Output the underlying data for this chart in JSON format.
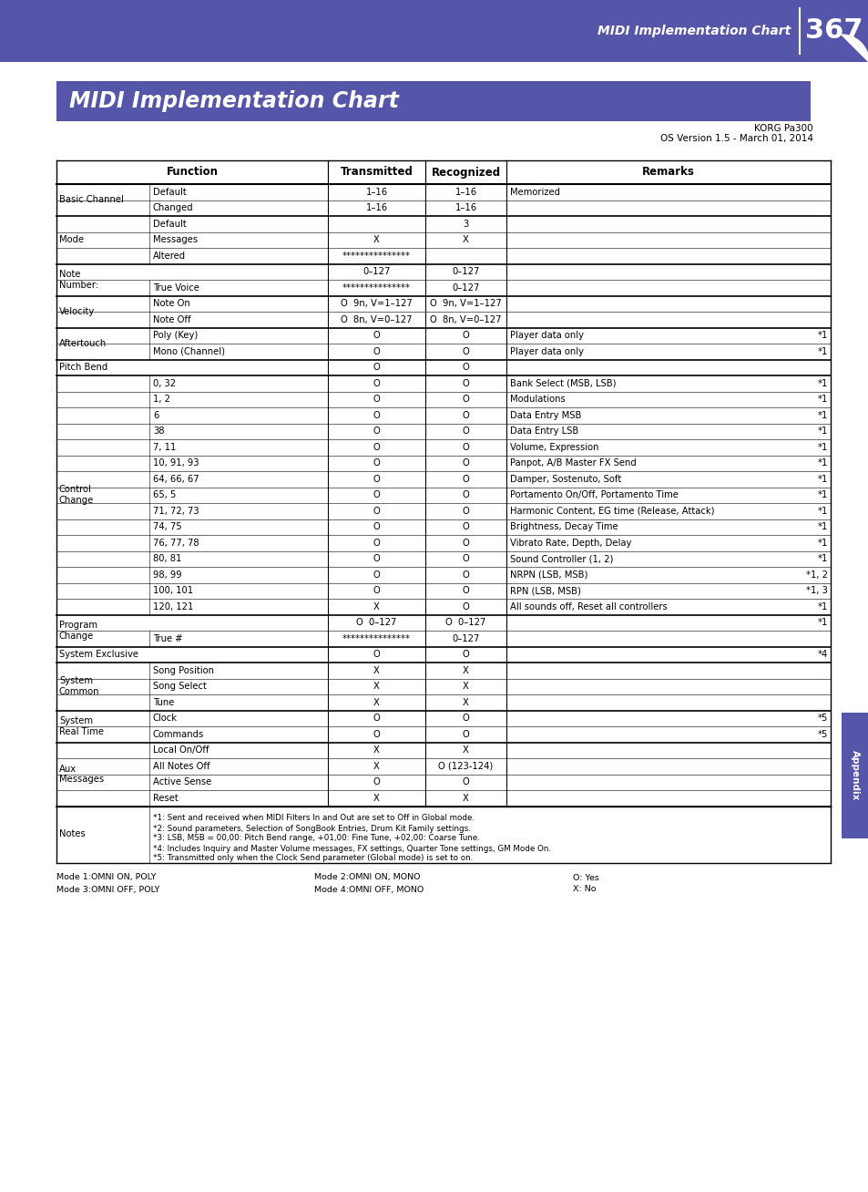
{
  "page_bg": "#ffffff",
  "header_bg": "#5555aa",
  "title_text": "MIDI Implementation Chart",
  "page_number": "367",
  "header_label": "MIDI Implementation Chart",
  "korg_info_line1": "KORG Pa300",
  "korg_info_line2": "OS Version 1.5 - March 01, 2014",
  "appendix_color": "#5555aa",
  "table_rows": [
    {
      "group": "Basic Channel",
      "sub": "Default",
      "trans": "1–16",
      "recog": "1–16",
      "remarks": "Memorized",
      "note": ""
    },
    {
      "group": "",
      "sub": "Changed",
      "trans": "1–16",
      "recog": "1–16",
      "remarks": "",
      "note": ""
    },
    {
      "group": "Mode",
      "sub": "Default",
      "trans": "",
      "recog": "3",
      "remarks": "",
      "note": ""
    },
    {
      "group": "",
      "sub": "Messages",
      "trans": "X",
      "recog": "X",
      "remarks": "",
      "note": ""
    },
    {
      "group": "",
      "sub": "Altered",
      "trans": "***************",
      "recog": "",
      "remarks": "",
      "note": ""
    },
    {
      "group": "Note\nNumber:",
      "sub": "",
      "trans": "0–127",
      "recog": "0–127",
      "remarks": "",
      "note": ""
    },
    {
      "group": "",
      "sub": "True Voice",
      "trans": "***************",
      "recog": "0–127",
      "remarks": "",
      "note": ""
    },
    {
      "group": "Velocity",
      "sub": "Note On",
      "trans": "O  9n, V=1–127",
      "recog": "O  9n, V=1–127",
      "remarks": "",
      "note": ""
    },
    {
      "group": "",
      "sub": "Note Off",
      "trans": "O  8n, V=0–127",
      "recog": "O  8n, V=0–127",
      "remarks": "",
      "note": ""
    },
    {
      "group": "Aftertouch",
      "sub": "Poly (Key)",
      "trans": "O",
      "recog": "O",
      "remarks": "Player data only",
      "note": "*1"
    },
    {
      "group": "",
      "sub": "Mono (Channel)",
      "trans": "O",
      "recog": "O",
      "remarks": "Player data only",
      "note": "*1"
    },
    {
      "group": "Pitch Bend",
      "sub": "",
      "trans": "O",
      "recog": "O",
      "remarks": "",
      "note": ""
    },
    {
      "group": "Control\nChange",
      "sub": "0, 32",
      "trans": "O",
      "recog": "O",
      "remarks": "Bank Select (MSB, LSB)",
      "note": "*1"
    },
    {
      "group": "",
      "sub": "1, 2",
      "trans": "O",
      "recog": "O",
      "remarks": "Modulations",
      "note": "*1"
    },
    {
      "group": "",
      "sub": "6",
      "trans": "O",
      "recog": "O",
      "remarks": "Data Entry MSB",
      "note": "*1"
    },
    {
      "group": "",
      "sub": "38",
      "trans": "O",
      "recog": "O",
      "remarks": "Data Entry LSB",
      "note": "*1"
    },
    {
      "group": "",
      "sub": "7, 11",
      "trans": "O",
      "recog": "O",
      "remarks": "Volume, Expression",
      "note": "*1"
    },
    {
      "group": "",
      "sub": "10, 91, 93",
      "trans": "O",
      "recog": "O",
      "remarks": "Panpot, A/B Master FX Send",
      "note": "*1"
    },
    {
      "group": "",
      "sub": "64, 66, 67",
      "trans": "O",
      "recog": "O",
      "remarks": "Damper, Sostenuto, Soft",
      "note": "*1"
    },
    {
      "group": "",
      "sub": "65, 5",
      "trans": "O",
      "recog": "O",
      "remarks": "Portamento On/Off, Portamento Time",
      "note": "*1"
    },
    {
      "group": "",
      "sub": "71, 72, 73",
      "trans": "O",
      "recog": "O",
      "remarks": "Harmonic Content, EG time (Release, Attack)",
      "note": "*1"
    },
    {
      "group": "",
      "sub": "74, 75",
      "trans": "O",
      "recog": "O",
      "remarks": "Brightness, Decay Time",
      "note": "*1"
    },
    {
      "group": "",
      "sub": "76, 77, 78",
      "trans": "O",
      "recog": "O",
      "remarks": "Vibrato Rate, Depth, Delay",
      "note": "*1"
    },
    {
      "group": "",
      "sub": "80, 81",
      "trans": "O",
      "recog": "O",
      "remarks": "Sound Controller (1, 2)",
      "note": "*1"
    },
    {
      "group": "",
      "sub": "98, 99",
      "trans": "O",
      "recog": "O",
      "remarks": "NRPN (LSB, MSB)",
      "note": "*1, 2"
    },
    {
      "group": "",
      "sub": "100, 101",
      "trans": "O",
      "recog": "O",
      "remarks": "RPN (LSB, MSB)",
      "note": "*1, 3"
    },
    {
      "group": "",
      "sub": "120, 121",
      "trans": "X",
      "recog": "O",
      "remarks": "All sounds off, Reset all controllers",
      "note": "*1"
    },
    {
      "group": "Program\nChange",
      "sub": "",
      "trans": "O  0–127",
      "recog": "O  0–127",
      "remarks": "",
      "note": "*1"
    },
    {
      "group": "",
      "sub": "True #",
      "trans": "***************",
      "recog": "0–127",
      "remarks": "",
      "note": ""
    },
    {
      "group": "System Exclusive",
      "sub": "",
      "trans": "O",
      "recog": "O",
      "remarks": "",
      "note": "*4"
    },
    {
      "group": "System\nCommon",
      "sub": "Song Position",
      "trans": "X",
      "recog": "X",
      "remarks": "",
      "note": ""
    },
    {
      "group": "",
      "sub": "Song Select",
      "trans": "X",
      "recog": "X",
      "remarks": "",
      "note": ""
    },
    {
      "group": "",
      "sub": "Tune",
      "trans": "X",
      "recog": "X",
      "remarks": "",
      "note": ""
    },
    {
      "group": "System\nReal Time",
      "sub": "Clock",
      "trans": "O",
      "recog": "O",
      "remarks": "",
      "note": "*5"
    },
    {
      "group": "",
      "sub": "Commands",
      "trans": "O",
      "recog": "O",
      "remarks": "",
      "note": "*5"
    },
    {
      "group": "Aux\nMessages",
      "sub": "Local On/Off",
      "trans": "X",
      "recog": "X",
      "remarks": "",
      "note": ""
    },
    {
      "group": "",
      "sub": "All Notes Off",
      "trans": "X",
      "recog": "O (123-124)",
      "remarks": "",
      "note": ""
    },
    {
      "group": "",
      "sub": "Active Sense",
      "trans": "O",
      "recog": "O",
      "remarks": "",
      "note": ""
    },
    {
      "group": "",
      "sub": "Reset",
      "trans": "X",
      "recog": "X",
      "remarks": "",
      "note": ""
    }
  ],
  "notes_label": "Notes",
  "notes_lines": [
    "*1: Sent and received when MIDI Filters In and Out are set to Off in Global mode.",
    "*2: Sound parameters, Selection of SongBook Entries, Drum Kit Family settings.",
    "*3: LSB, MSB = 00,00: Pitch Bend range, +01,00: Fine Tune, +02,00: Coarse Tune.",
    "*4: Includes Inquiry and Master Volume messages, FX settings, Quarter Tone settings, GM Mode On.",
    "*5: Transmitted only when the Clock Send parameter (Global mode) is set to on."
  ],
  "footnote_row1_col1": "Mode 1:OMNI ON, POLY",
  "footnote_row1_col2": "Mode 2:OMNI ON, MONO",
  "footnote_row1_col3": "O: Yes",
  "footnote_row2_col1": "Mode 3:OMNI OFF, POLY",
  "footnote_row2_col2": "Mode 4:OMNI OFF, MONO",
  "footnote_row2_col3": "X: No"
}
